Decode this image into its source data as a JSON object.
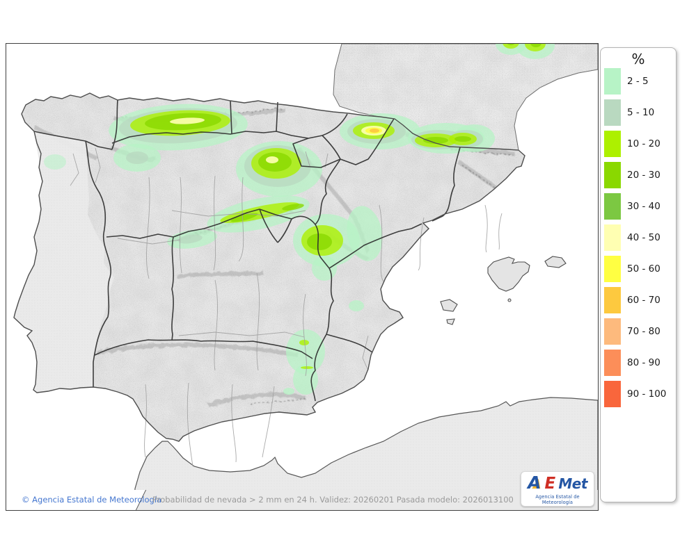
{
  "legend": {
    "title": "%",
    "entries": [
      {
        "label": "2 - 5",
        "color": "#b7f3c6"
      },
      {
        "label": "5 - 10",
        "color": "#b9d9c0"
      },
      {
        "label": "10 - 20",
        "color": "#adf000"
      },
      {
        "label": "20 - 30",
        "color": "#8ad800"
      },
      {
        "label": "30 - 40",
        "color": "#7cc842"
      },
      {
        "label": "40 - 50",
        "color": "#ffffb2"
      },
      {
        "label": "50 - 60",
        "color": "#ffff42"
      },
      {
        "label": "60 - 70",
        "color": "#fdc93f"
      },
      {
        "label": "70 - 80",
        "color": "#fdba7d"
      },
      {
        "label": "80 - 90",
        "color": "#fc8e59"
      },
      {
        "label": "90 - 100",
        "color": "#f9663c"
      }
    ]
  },
  "footer": {
    "copyright": "© Agencia Estatal de Meteorología",
    "description": "Probabilidad de nevada > 2 mm en 24 h. Validez: 20260201 Pasada modelo: 2026013100"
  },
  "logo": {
    "parts": [
      "A",
      "E",
      "Met"
    ],
    "subtitle": "Agencia Estatal de Meteorología"
  },
  "map": {
    "colors": {
      "sea": "#ffffff",
      "spain_terrain": "#e6e6e6",
      "flat_land": "#eaeaea",
      "community_border": "#2e2e2e",
      "province_border": "#a0a0a0",
      "coastline": "#4d4d4d"
    }
  }
}
